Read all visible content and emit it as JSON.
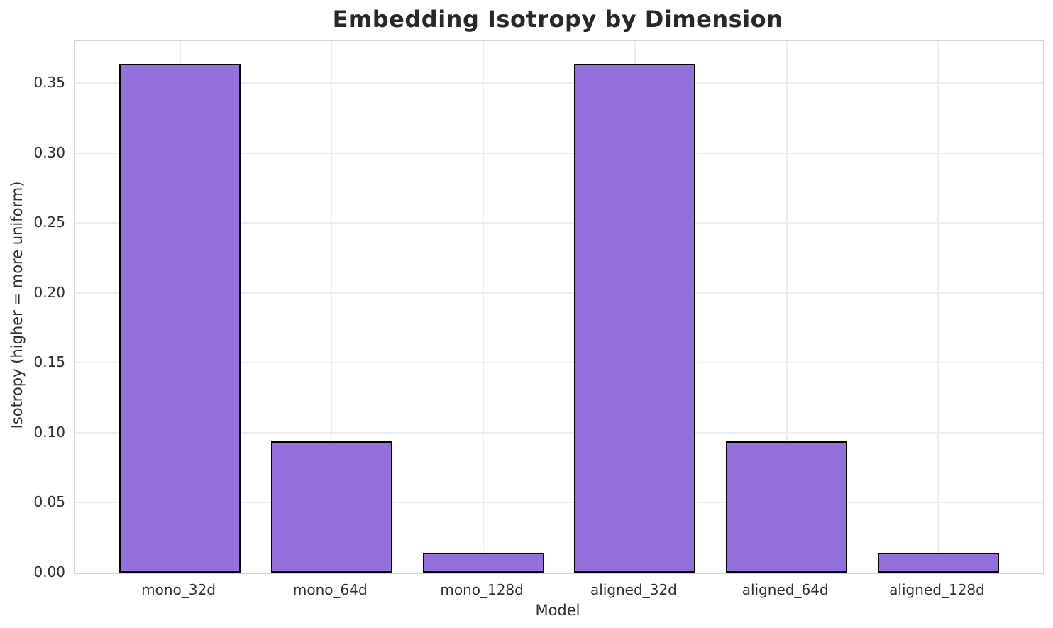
{
  "chart_data": {
    "type": "bar",
    "title": "Embedding Isotropy by Dimension",
    "xlabel": "Model",
    "ylabel": "Isotropy (higher = more uniform)",
    "categories": [
      "mono_32d",
      "mono_64d",
      "mono_128d",
      "aligned_32d",
      "aligned_64d",
      "aligned_128d"
    ],
    "values": [
      0.364,
      0.094,
      0.014,
      0.364,
      0.094,
      0.014
    ],
    "ylim": [
      0,
      0.38
    ],
    "ytick_values": [
      0.0,
      0.05,
      0.1,
      0.15,
      0.2,
      0.25,
      0.3,
      0.35
    ],
    "ytick_labels": [
      "0.00",
      "0.05",
      "0.10",
      "0.15",
      "0.20",
      "0.25",
      "0.30",
      "0.35"
    ],
    "grid": true,
    "legend": "none",
    "bar_width_fraction": 0.8,
    "colors": {
      "bar_fill": "#9370DB",
      "bar_edge": "#000000",
      "gridline": "#ededed",
      "spine": "#d4d4d4",
      "title_text": "#282828",
      "tick_text": "#2e2e2e",
      "background": "#ffffff"
    }
  }
}
